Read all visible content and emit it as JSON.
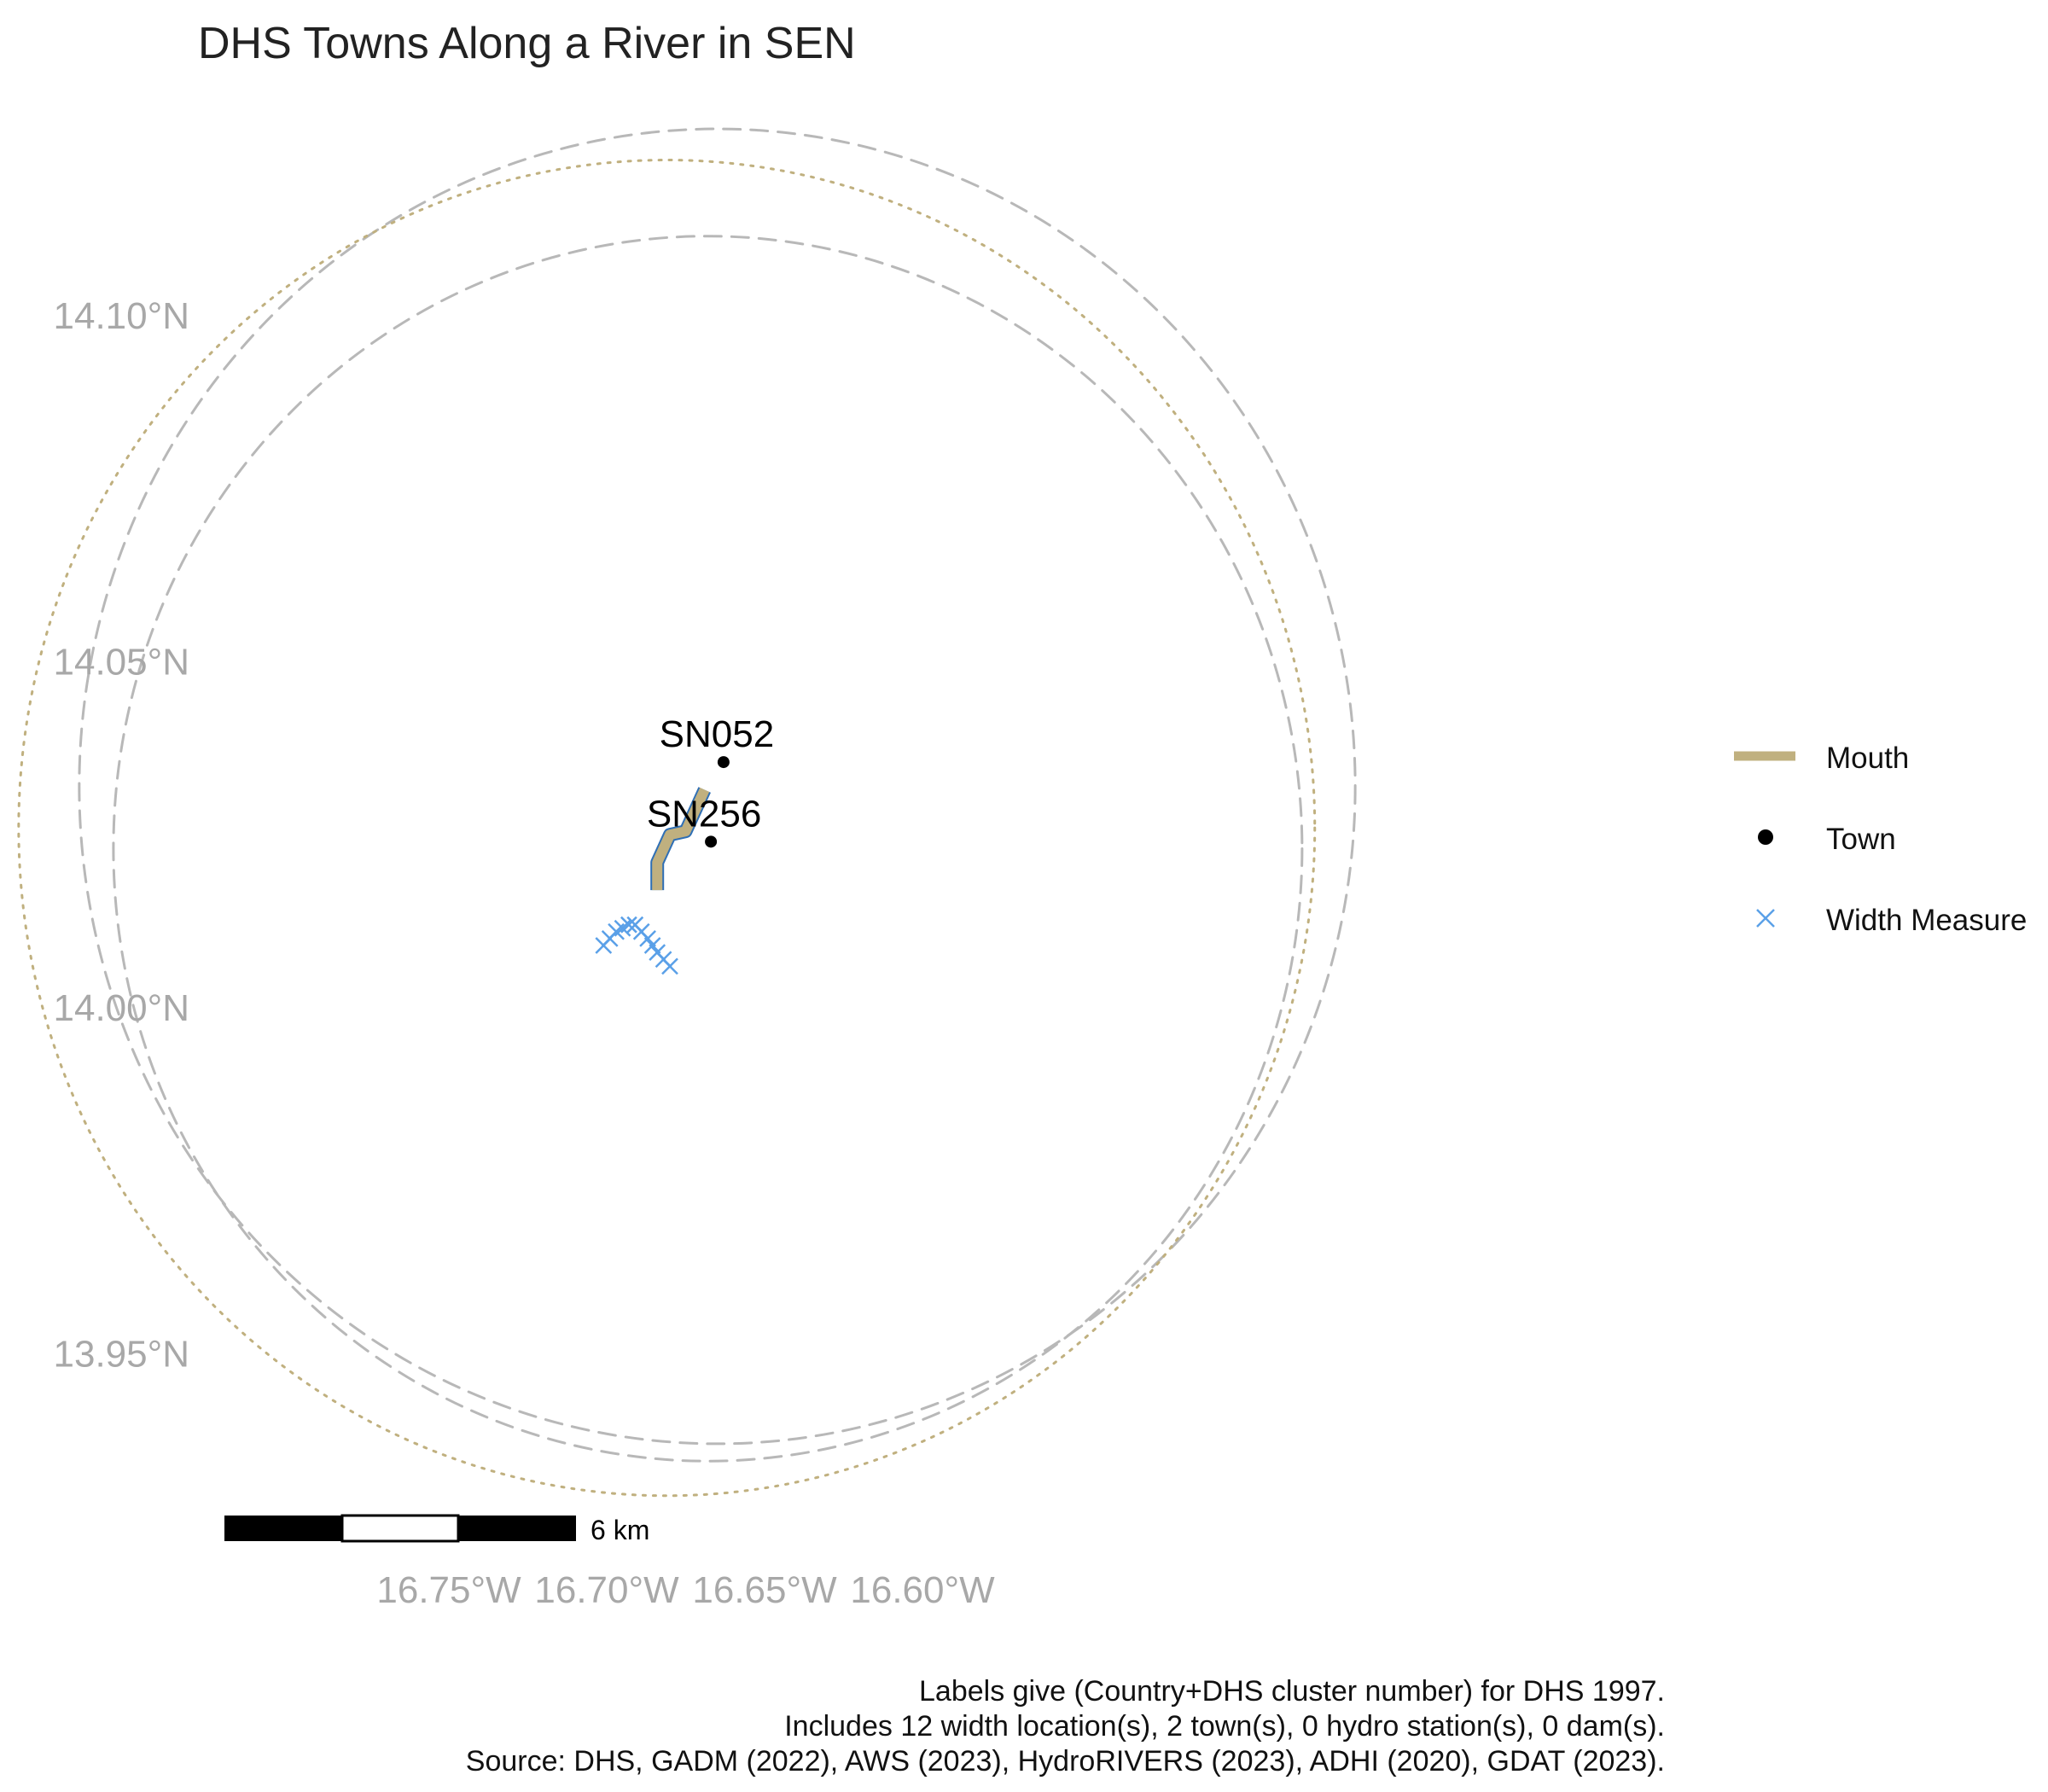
{
  "title": "DHS Towns Along a River in SEN",
  "chart_data": {
    "type": "map",
    "title": "DHS Towns Along a River in SEN",
    "x_ticks": [
      "16.75°W",
      "16.70°W",
      "16.65°W",
      "16.60°W"
    ],
    "x_tick_values": [
      -16.75,
      -16.7,
      -16.65,
      -16.6
    ],
    "y_ticks": [
      "14.10°N",
      "14.05°N",
      "14.00°N",
      "13.95°N"
    ],
    "y_tick_values": [
      14.1,
      14.05,
      14.0,
      13.95
    ],
    "xlim": [
      -16.79,
      -16.57
    ],
    "ylim": [
      13.925,
      14.125
    ],
    "grid": false,
    "legend_position": "right",
    "legend": [
      {
        "label": "Mouth",
        "symbol": "thick-line",
        "color": "#c0b07f"
      },
      {
        "label": "Town",
        "symbol": "dot",
        "color": "#000000"
      },
      {
        "label": "Width Measure",
        "symbol": "x-cross",
        "color": "#5aa0e8"
      }
    ],
    "towns": [
      {
        "label": "SN052",
        "lon": -16.663,
        "lat": 14.0355
      },
      {
        "label": "SN256",
        "lon": -16.667,
        "lat": 14.024
      }
    ],
    "mouth_river": [
      [
        -16.684,
        14.017
      ],
      [
        -16.684,
        14.021
      ],
      [
        -16.68,
        14.025
      ],
      [
        -16.675,
        14.0255
      ],
      [
        -16.6725,
        14.028
      ],
      [
        -16.669,
        14.0315
      ]
    ],
    "width_measures": [
      [
        -16.701,
        14.009
      ],
      [
        -16.699,
        14.01
      ],
      [
        -16.697,
        14.011
      ],
      [
        -16.695,
        14.0115
      ],
      [
        -16.693,
        14.012
      ],
      [
        -16.691,
        14.012
      ],
      [
        -16.689,
        14.011
      ],
      [
        -16.687,
        14.01
      ],
      [
        -16.6855,
        14.009
      ],
      [
        -16.684,
        14.008
      ],
      [
        -16.682,
        14.007
      ],
      [
        -16.68,
        14.006
      ]
    ],
    "buffer_circles": [
      {
        "style": "dashed",
        "color": "#b8b8b8",
        "center": [
          -16.665,
          14.032
        ],
        "radius_lat": 0.095
      },
      {
        "style": "dashed",
        "color": "#b8b8b8",
        "center": [
          -16.668,
          14.023
        ],
        "radius_lat": 0.0885
      },
      {
        "style": "dotted",
        "color": "#c0b07f",
        "center": [
          -16.681,
          14.026
        ],
        "radius_lat": 0.0965
      }
    ],
    "scale_bar": {
      "label": "6 km",
      "segments": 3
    }
  },
  "caption": [
    "Labels give (Country+DHS cluster number) for DHS 1997.",
    "Includes 12 width location(s), 2 town(s), 0 hydro station(s), 0 dam(s).",
    "Source: DHS, GADM (2022), AWS (2023), HydroRIVERS (2023), ADHI (2020), GDAT (2023)."
  ]
}
